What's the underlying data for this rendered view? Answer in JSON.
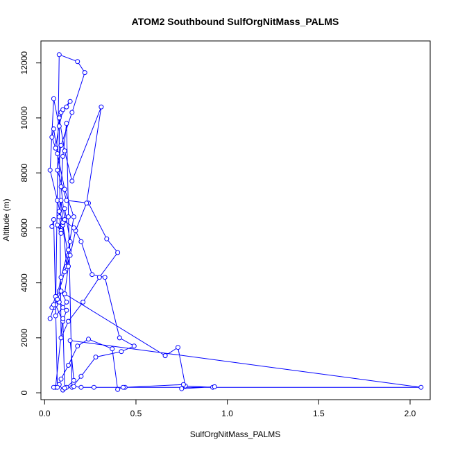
{
  "chart_data": {
    "type": "line",
    "title": "ATOM2 Southbound SulfOrgNitMass_PALMS",
    "xlabel": "SulfOrgNitMass_PALMS",
    "ylabel": "Altitude (m)",
    "xlim": [
      -0.02,
      2.11
    ],
    "ylim": [
      -250,
      12800
    ],
    "x_ticks": [
      0.0,
      0.5,
      1.0,
      1.5,
      2.0
    ],
    "x_tick_labels": [
      "0.0",
      "0.5",
      "1.0",
      "1.5",
      "2.0"
    ],
    "y_ticks": [
      0,
      2000,
      4000,
      6000,
      8000,
      10000,
      12000
    ],
    "y_tick_labels": [
      "0",
      "2000",
      "4000",
      "6000",
      "8000",
      "10000",
      "12000"
    ],
    "grid": false,
    "legend": "none",
    "series_color": "#0000ff",
    "marker": "open-circle",
    "series": [
      {
        "x": [
          0.03,
          0.05,
          0.08,
          0.12,
          0.1,
          0.06,
          0.09,
          0.13,
          0.16,
          0.11,
          0.07,
          0.05,
          0.04,
          0.06,
          0.09,
          0.12,
          0.14,
          0.1,
          0.08,
          0.05,
          0.03,
          0.07,
          0.1,
          0.13,
          0.11,
          0.08,
          0.06,
          0.04,
          0.05,
          0.07,
          0.09,
          0.12,
          0.1,
          0.06,
          0.08,
          0.18,
          0.22,
          0.15,
          0.09,
          0.07,
          0.12,
          0.24,
          0.34,
          0.4,
          0.3,
          0.21,
          0.13,
          0.09,
          0.08,
          0.11,
          0.15,
          0.31,
          0.23,
          0.17,
          0.14,
          0.12,
          0.1,
          0.09,
          0.08,
          0.16,
          0.2,
          0.26,
          0.33,
          0.41,
          0.49,
          0.42,
          0.28,
          0.2,
          0.15,
          0.12,
          0.1,
          0.09,
          0.11,
          0.13,
          0.09,
          0.07,
          0.09,
          0.08,
          0.11,
          0.14,
          0.13,
          0.11,
          0.66,
          0.73,
          0.77,
          0.92,
          0.93,
          0.75,
          0.76,
          0.44,
          0.43,
          0.4,
          0.37,
          0.24,
          0.18,
          0.13,
          0.09,
          0.08,
          0.1,
          0.12,
          0.16,
          0.14,
          2.06,
          0.27,
          0.2,
          0.16,
          0.11,
          0.1,
          0.06,
          0.05,
          0.07,
          0.05,
          0.04
        ],
        "y": [
          2700,
          3100,
          3300,
          3000,
          2600,
          3200,
          4200,
          5200,
          6400,
          7400,
          8700,
          9600,
          9300,
          8900,
          10200,
          10400,
          10600,
          10300,
          9700,
          10700,
          8100,
          7000,
          6100,
          5000,
          4400,
          3700,
          3500,
          3100,
          3200,
          3400,
          3700,
          3300,
          3100,
          2800,
          12300,
          12050,
          11650,
          10200,
          9000,
          8100,
          7000,
          6900,
          5600,
          5100,
          4200,
          3300,
          2600,
          2000,
          10000,
          8800,
          7700,
          10400,
          6900,
          5900,
          5000,
          4600,
          6200,
          7000,
          6400,
          6000,
          5500,
          4300,
          4200,
          2000,
          1700,
          1500,
          1300,
          600,
          200,
          9800,
          8600,
          7500,
          6300,
          6400,
          5900,
          6100,
          5800,
          6600,
          6700,
          5500,
          4600,
          3600,
          1350,
          1650,
          250,
          200,
          220,
          150,
          300,
          200,
          200,
          120,
          1600,
          1950,
          1700,
          1000,
          500,
          300,
          100,
          200,
          450,
          1900,
          200,
          200,
          200,
          230,
          170,
          2700,
          200,
          200,
          200,
          6300,
          6050
        ]
      }
    ]
  }
}
